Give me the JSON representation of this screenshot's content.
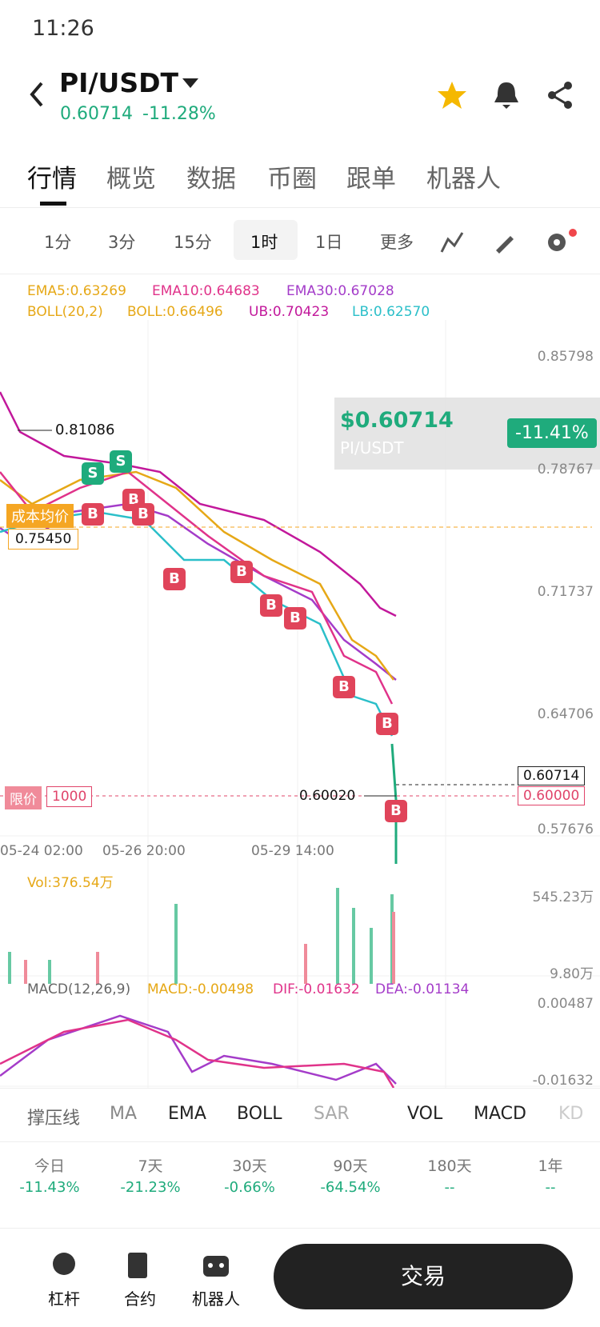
{
  "status_bar": {
    "time": "11:26"
  },
  "header": {
    "pair": "PI/USDT",
    "price": "0.60714",
    "change": "-11.28%"
  },
  "tabs": [
    "行情",
    "概览",
    "数据",
    "币圈",
    "跟单",
    "机器人"
  ],
  "intervals": [
    "1分",
    "3分",
    "15分",
    "1时",
    "1日",
    "更多"
  ],
  "indicators": {
    "ema": [
      "EMA5:0.63269",
      "EMA10:0.64683",
      "EMA30:0.67028"
    ],
    "boll": [
      "BOLL(20,2)",
      "BOLL:0.66496",
      "UB:0.70423",
      "LB:0.62570"
    ]
  },
  "price_axis": [
    "0.85798",
    "0.78767",
    "0.71737",
    "0.64706",
    "0.57676"
  ],
  "price_box": {
    "price": "$0.60714",
    "pair": "PI/USDT",
    "change": "-11.41%"
  },
  "chart_labels": {
    "high": "0.81086",
    "cost_label": "成本均价",
    "cost_value": "0.75450",
    "low": "0.60020",
    "limit": "限价",
    "limit_qty": "1000",
    "current_price": "0.60714",
    "order_price": "0.60000"
  },
  "trade_markers": [
    "S",
    "S",
    "B",
    "B",
    "B",
    "B",
    "B",
    "B",
    "B",
    "B",
    "B",
    "B"
  ],
  "time_axis": [
    "05-24 02:00",
    "05-26 20:00",
    "05-29 14:00"
  ],
  "volume": {
    "label": "Vol:376.54万",
    "axis": [
      "545.23万",
      "9.80万"
    ]
  },
  "macd": {
    "labels": [
      "MACD(12,26,9)",
      "MACD:-0.00498",
      "DIF:-0.01632",
      "DEA:-0.01134"
    ],
    "axis": [
      "0.00487",
      "-0.01632"
    ]
  },
  "indicator_tabs": [
    "撑压线",
    "MA",
    "EMA",
    "BOLL",
    "SAR",
    "VOL",
    "MACD",
    "KD"
  ],
  "performance": [
    {
      "period": "今日",
      "change": "-11.43%"
    },
    {
      "period": "7天",
      "change": "-21.23%"
    },
    {
      "period": "30天",
      "change": "-0.66%"
    },
    {
      "period": "90天",
      "change": "-64.54%"
    },
    {
      "period": "180天",
      "change": "--"
    },
    {
      "period": "1年",
      "change": "--"
    }
  ],
  "bottom_nav": [
    "杠杆",
    "合约",
    "机器人"
  ],
  "trade_button": "交易"
}
